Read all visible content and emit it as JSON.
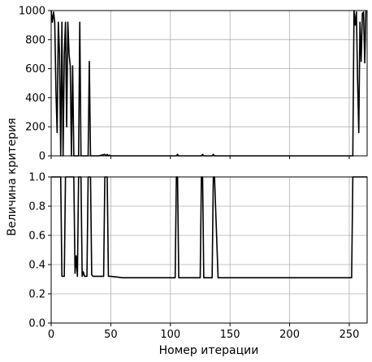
{
  "chart_data": {
    "type": "line",
    "ylabel": "Величина критерия",
    "xlabel": "Номер итерации",
    "grid": true,
    "xlim": [
      0,
      265
    ],
    "xticks": [
      0,
      50,
      100,
      150,
      200,
      250
    ],
    "panels": [
      {
        "name": "top",
        "ylim": [
          0,
          1000
        ],
        "yticks": [
          0,
          200,
          400,
          600,
          800,
          1000
        ],
        "series": [
          {
            "color": "#000000",
            "x": [
              0,
              1,
              2,
              3,
              4,
              5,
              6,
              7,
              8,
              9,
              10,
              11,
              12,
              13,
              14,
              15,
              16,
              17,
              18,
              19,
              20,
              21,
              22,
              23,
              24,
              25,
              26,
              27,
              28,
              29,
              30,
              31,
              32,
              33,
              34,
              35,
              40,
              45,
              46,
              47,
              48,
              49,
              50,
              60,
              80,
              100,
              105,
              106,
              107,
              120,
              126,
              127,
              128,
              135,
              136,
              137,
              150,
              200,
              250,
              252,
              253,
              254,
              255,
              256,
              257,
              258,
              259,
              260,
              261,
              262,
              263,
              264
            ],
            "y": [
              1000,
              920,
              990,
              920,
              450,
              160,
              920,
              700,
              0,
              920,
              0,
              700,
              920,
              200,
              920,
              700,
              620,
              0,
              620,
              0,
              0,
              0,
              0,
              0,
              920,
              0,
              0,
              0,
              0,
              0,
              0,
              0,
              650,
              0,
              0,
              0,
              0,
              10,
              0,
              10,
              0,
              5,
              0,
              0,
              0,
              0,
              0,
              10,
              0,
              0,
              0,
              10,
              0,
              0,
              10,
              0,
              0,
              0,
              0,
              0,
              0,
              1000,
              900,
              990,
              520,
              160,
              920,
              650,
              980,
              990,
              640,
              1000
            ]
          }
        ]
      },
      {
        "name": "bottom",
        "ylim": [
          0,
          1
        ],
        "yticks": [
          0,
          0.2,
          0.4,
          0.6,
          0.8,
          1.0
        ],
        "series": [
          {
            "color": "#000000",
            "x": [
              0,
              1,
              5,
              6,
              7,
              8,
              9,
              10,
              11,
              12,
              13,
              14,
              15,
              16,
              17,
              18,
              19,
              20,
              21,
              22,
              23,
              24,
              25,
              26,
              27,
              28,
              29,
              30,
              31,
              32,
              33,
              34,
              35,
              40,
              44,
              45,
              46,
              47,
              48,
              49,
              50,
              60,
              80,
              100,
              104,
              105,
              106,
              107,
              120,
              125,
              126,
              127,
              128,
              135,
              136,
              137,
              140,
              150,
              200,
              250,
              252,
              253,
              254,
              255,
              265
            ],
            "y": [
              1,
              1,
              1,
              1,
              1,
              1,
              0.32,
              0.32,
              0.32,
              1,
              1,
              1,
              1,
              1,
              1,
              1,
              1,
              0.34,
              0.46,
              0.32,
              1,
              1,
              1,
              0.32,
              0.35,
              0.32,
              0.32,
              0.32,
              1,
              1,
              1,
              0.33,
              0.32,
              0.32,
              0.32,
              1,
              1,
              1,
              0.32,
              0.32,
              0.32,
              0.31,
              0.31,
              0.31,
              0.31,
              1,
              1,
              0.31,
              0.31,
              0.31,
              1,
              1,
              0.31,
              0.31,
              1,
              1,
              0.31,
              0.31,
              0.31,
              0.31,
              0.31,
              1,
              1,
              1,
              1
            ]
          }
        ]
      }
    ]
  }
}
